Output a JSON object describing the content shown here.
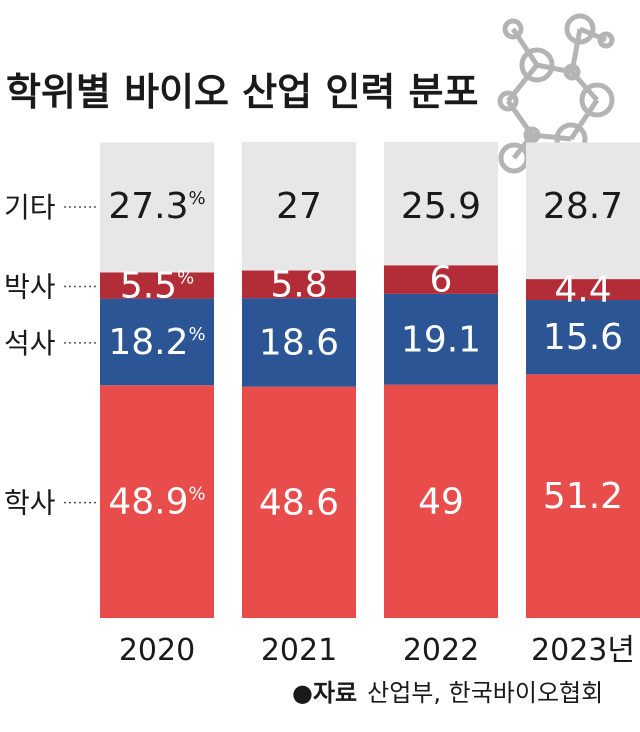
{
  "chart_data": {
    "type": "bar",
    "stacked": true,
    "percent": true,
    "title": "학위별 바이오 산업 인력 분포",
    "categories": [
      "2020",
      "2021",
      "2022",
      "2023년"
    ],
    "series": [
      {
        "name": "학사",
        "values": [
          48.9,
          48.6,
          49,
          51.2
        ],
        "labels": [
          "48.9",
          "48.6",
          "49",
          "51.2"
        ]
      },
      {
        "name": "석사",
        "values": [
          18.2,
          18.6,
          19.1,
          15.6
        ],
        "labels": [
          "18.2",
          "18.6",
          "19.1",
          "15.6"
        ]
      },
      {
        "name": "박사",
        "values": [
          5.5,
          5.8,
          6,
          4.4
        ],
        "labels": [
          "5.5",
          "5.8",
          "6",
          "4.4"
        ]
      },
      {
        "name": "기타",
        "values": [
          27.3,
          27,
          25.9,
          28.7
        ],
        "labels": [
          "27.3",
          "27",
          "25.9",
          "28.7"
        ]
      }
    ],
    "percent_suffix": "%",
    "ylim": [
      0,
      100
    ],
    "grid": false
  },
  "colors": {
    "학사": "#e84c4b",
    "석사": "#2b5595",
    "박사": "#b22d37",
    "기타": "#e7e7e7",
    "text_dark": "#1a1a1a",
    "text_light": "#ffffff",
    "molecule": "#b4b4b4"
  },
  "source": {
    "bullet": "●",
    "label": "자료",
    "text": "산업부, 한국바이오협회"
  },
  "decoration": {
    "molecule_icon": "molecule-icon"
  }
}
